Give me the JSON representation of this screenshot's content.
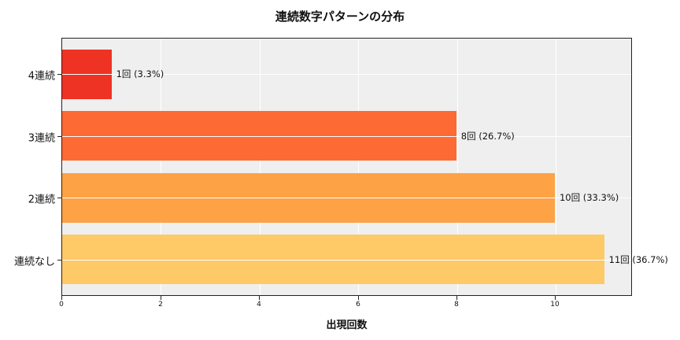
{
  "chart_data": {
    "type": "bar",
    "orientation": "horizontal",
    "title": "連続数字パターンの分布",
    "xlabel": "出現回数",
    "ylabel": "",
    "categories": [
      "4連続",
      "3連続",
      "2連続",
      "連続なし"
    ],
    "values": [
      1,
      8,
      10,
      11
    ],
    "percentages": [
      3.3,
      26.7,
      33.3,
      36.7
    ],
    "value_labels": [
      "1回 (3.3%)",
      "8回 (26.7%)",
      "10回 (33.3%)",
      "11回 (36.7%)"
    ],
    "colors": [
      "#ee3224",
      "#fe6a33",
      "#fda245",
      "#fec967"
    ],
    "xlim": [
      0,
      11.55
    ],
    "xticks": [
      "0",
      "2",
      "4",
      "6",
      "8",
      "10"
    ],
    "grid": true,
    "background": "#efefef"
  }
}
